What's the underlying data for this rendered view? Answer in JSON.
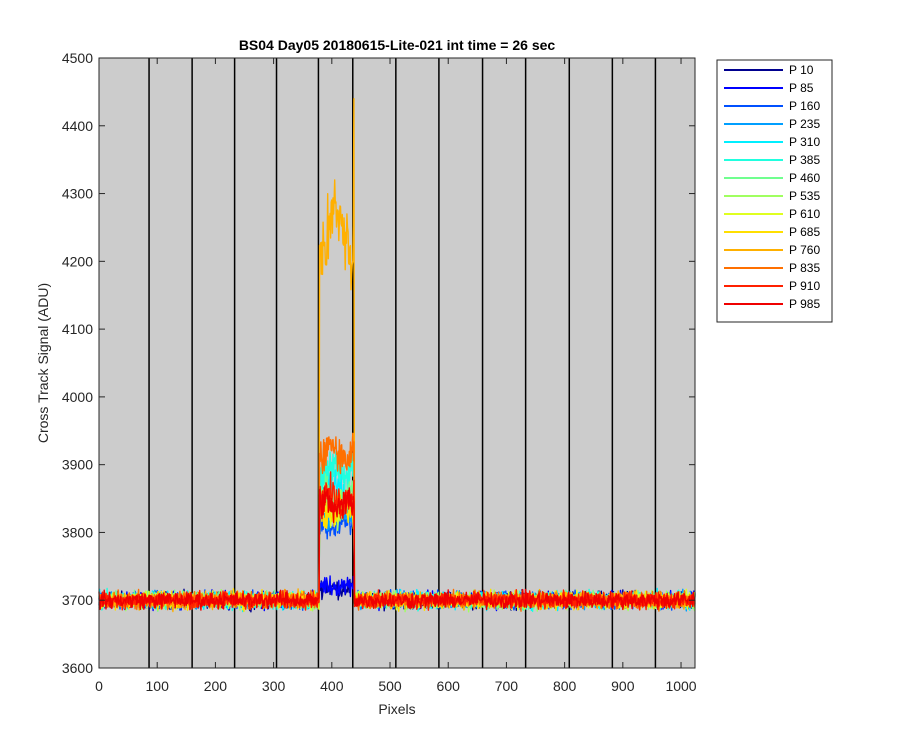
{
  "chart_data": {
    "type": "line",
    "title": "BS04 Day05 20180615-Lite-021 int time = 26 sec",
    "xlabel": "Pixels",
    "ylabel": "Cross Track Signal (ADU)",
    "xlim": [
      0,
      1024
    ],
    "ylim": [
      3600,
      4500
    ],
    "xticks": [
      0,
      100,
      200,
      300,
      400,
      500,
      600,
      700,
      800,
      900,
      1000
    ],
    "yticks": [
      3600,
      3700,
      3800,
      3900,
      4000,
      4100,
      4200,
      4300,
      4400,
      4500
    ],
    "band_boundaries": [
      86,
      160,
      233,
      305,
      377,
      436,
      510,
      584,
      659,
      733,
      808,
      882,
      956
    ],
    "plot_background": "#cccccc",
    "legend_position": "outside-right",
    "baseline": 3700,
    "baseline_noise": 12,
    "feature_range": [
      379,
      438
    ],
    "series": [
      {
        "name": "P 10",
        "color": "#00008f",
        "feature_level": 3718
      },
      {
        "name": "P 85",
        "color": "#0000ff",
        "feature_level": 3722
      },
      {
        "name": "P 160",
        "color": "#0050ff",
        "feature_level": 3810
      },
      {
        "name": "P 235",
        "color": "#009fff",
        "feature_level": 3830
      },
      {
        "name": "P 310",
        "color": "#00efff",
        "feature_level": 3860
      },
      {
        "name": "P 385",
        "color": "#20ffdf",
        "feature_level": 3890
      },
      {
        "name": "P 460",
        "color": "#70ff8f",
        "feature_level": 3850
      },
      {
        "name": "P 535",
        "color": "#a0ff60",
        "feature_level": 3840
      },
      {
        "name": "P 610",
        "color": "#dfff20",
        "feature_level": 3835
      },
      {
        "name": "P 685",
        "color": "#ffdf00",
        "feature_level": 3830
      },
      {
        "name": "P 760",
        "color": "#ffb000",
        "feature_level": 4250
      },
      {
        "name": "P 835",
        "color": "#ff7000",
        "feature_level": 3920
      },
      {
        "name": "P 910",
        "color": "#ff2000",
        "feature_level": 3850
      },
      {
        "name": "P 985",
        "color": "#ef0000",
        "feature_level": 3840
      }
    ]
  }
}
